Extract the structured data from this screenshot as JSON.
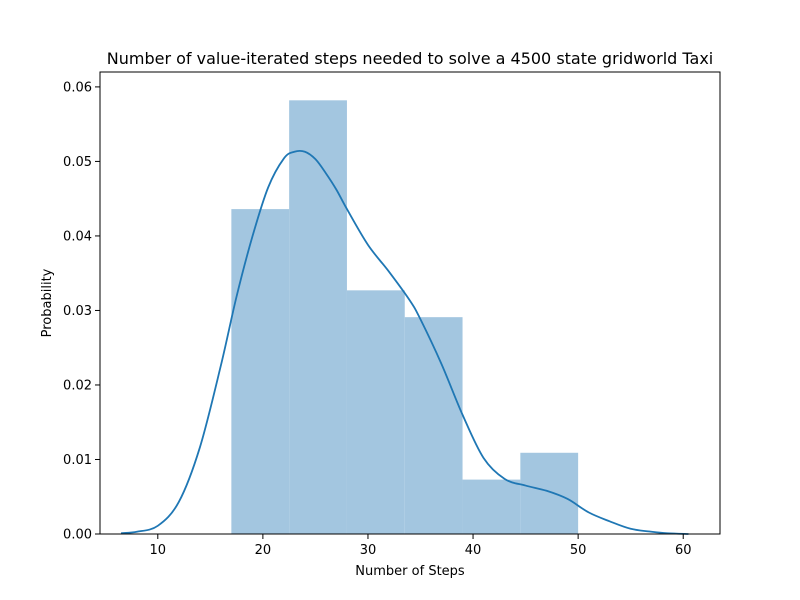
{
  "chart_data": {
    "type": "bar",
    "title": "Number of value-iterated steps needed to solve a 4500 state gridworld Taxi",
    "xlabel": "Number of Steps",
    "ylabel": "Probability",
    "xlim": [
      4.5,
      63.5
    ],
    "ylim": [
      0,
      0.062
    ],
    "xticks": [
      10,
      20,
      30,
      40,
      50,
      60
    ],
    "yticks": [
      0.0,
      0.01,
      0.02,
      0.03,
      0.04,
      0.05,
      0.06
    ],
    "grid": false,
    "bar_color": "#a3c6e0",
    "line_color": "#1f77b4",
    "histogram": [
      {
        "x0": 17.0,
        "x1": 22.5,
        "value": 0.0436
      },
      {
        "x0": 22.5,
        "x1": 28.0,
        "value": 0.0582
      },
      {
        "x0": 28.0,
        "x1": 33.5,
        "value": 0.0327
      },
      {
        "x0": 33.5,
        "x1": 39.0,
        "value": 0.0291
      },
      {
        "x0": 39.0,
        "x1": 44.5,
        "value": 0.0073
      },
      {
        "x0": 44.5,
        "x1": 50.0,
        "value": 0.0109
      }
    ],
    "density": {
      "x": [
        6.5,
        8,
        10,
        12,
        14,
        16,
        17.5,
        19,
        20.5,
        22,
        23,
        24,
        25,
        26,
        27,
        28,
        30,
        32,
        34,
        35,
        37,
        39,
        41,
        43,
        45,
        47,
        49,
        51,
        53,
        55,
        57,
        58.5,
        60.5
      ],
      "y": [
        0.0001,
        0.0003,
        0.0011,
        0.0043,
        0.0116,
        0.0226,
        0.0319,
        0.0399,
        0.0465,
        0.0504,
        0.0513,
        0.0513,
        0.0503,
        0.0484,
        0.0462,
        0.0436,
        0.0388,
        0.0352,
        0.0313,
        0.0288,
        0.0228,
        0.016,
        0.0102,
        0.0074,
        0.0065,
        0.0058,
        0.0047,
        0.0029,
        0.0017,
        0.0007,
        0.0003,
        0.0001,
        0.0
      ]
    }
  }
}
